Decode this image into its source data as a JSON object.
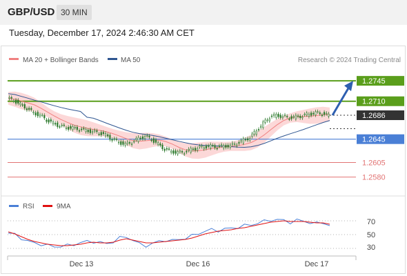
{
  "header": {
    "pair": "GBP/USD",
    "timeframe": "30 MIN"
  },
  "datetime": "Tuesday, December 17, 2024 2:46:30 AM CET",
  "legend": {
    "ma20_label": "MA 20 + Bollinger Bands",
    "ma50_label": "MA 50",
    "credit": "Research © 2024 Trading Central"
  },
  "colors": {
    "ma20": "#f08080",
    "ma50": "#2e5590",
    "resistance": "#5a9e1b",
    "support_line": "#4a7fd6",
    "support_low": "#e27373",
    "rsi": "#4a7fd6",
    "rsi_ma": "#e01010",
    "candle": "#2d7a2d",
    "band_fill": "#fcd8d8"
  },
  "chart_data": [
    {
      "type": "candlestick",
      "title": "GBP/USD 30 MIN",
      "x_tick_labels": [
        "Dec 13",
        "Dec 16",
        "Dec 17"
      ],
      "ylim": [
        1.255,
        1.277
      ],
      "series": [
        {
          "name": "MA 20 + Bollinger Bands"
        },
        {
          "name": "MA 50"
        }
      ],
      "close_path": [
        1.2715,
        1.2712,
        1.2704,
        1.2698,
        1.269,
        1.2686,
        1.2678,
        1.2672,
        1.2668,
        1.2665,
        1.2664,
        1.2662,
        1.266,
        1.2658,
        1.2656,
        1.2652,
        1.2645,
        1.264,
        1.2636,
        1.264,
        1.2646,
        1.265,
        1.2645,
        1.2636,
        1.2628,
        1.2624,
        1.2622,
        1.2623,
        1.2627,
        1.263,
        1.2632,
        1.2633,
        1.2632,
        1.2633,
        1.2634,
        1.2638,
        1.2643,
        1.2648,
        1.266,
        1.2672,
        1.2683,
        1.2686,
        1.2684,
        1.2682,
        1.2683,
        1.2685,
        1.2688,
        1.269,
        1.2689,
        1.2686
      ],
      "levels": [
        {
          "label": "1.2745",
          "value": 1.2745,
          "kind": "target"
        },
        {
          "label": "1.2710",
          "value": 1.271,
          "kind": "resistance"
        },
        {
          "label": "1.2686",
          "value": 1.2686,
          "kind": "last"
        },
        {
          "label": "1.2645",
          "value": 1.2645,
          "kind": "support"
        },
        {
          "label": "1.2605",
          "value": 1.2605,
          "kind": "support_low"
        },
        {
          "label": "1.2580",
          "value": 1.258,
          "kind": "support_low"
        }
      ]
    },
    {
      "type": "line",
      "title": "RSI",
      "series": [
        {
          "name": "RSI",
          "values": [
            52,
            50,
            45,
            40,
            38,
            36,
            34,
            33,
            33,
            34,
            36,
            38,
            40,
            40,
            38,
            37,
            40,
            45,
            47,
            42,
            36,
            34,
            37,
            40,
            42,
            41,
            43,
            45,
            48,
            52,
            55,
            57,
            56,
            58,
            59,
            61,
            63,
            64,
            67,
            69,
            71,
            72,
            70,
            68,
            71,
            69,
            68,
            66,
            67,
            64
          ]
        },
        {
          "name": "9MA",
          "values": [
            54,
            51,
            47,
            43,
            40,
            38,
            36,
            35,
            34,
            34,
            35,
            36,
            38,
            39,
            38,
            38,
            39,
            42,
            44,
            42,
            40,
            38,
            38,
            39,
            40,
            41,
            42,
            43,
            45,
            48,
            51,
            53,
            55,
            56,
            57,
            59,
            60,
            62,
            64,
            66,
            68,
            69,
            70,
            69,
            69,
            69,
            68,
            67,
            67,
            65
          ]
        }
      ],
      "y_tick_labels": [
        "70",
        "50",
        "30"
      ],
      "ylim": [
        20,
        80
      ]
    }
  ]
}
